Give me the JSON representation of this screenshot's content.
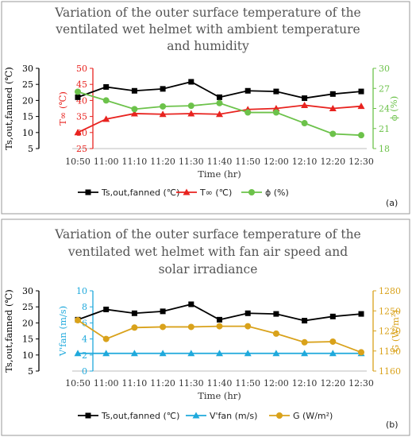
{
  "chart_data": [
    {
      "type": "line",
      "panel_label": "(a)",
      "title_lines": [
        "Variation of the outer surface temperature of the",
        "ventilated wet helmet with ambient temperature",
        "and humidity"
      ],
      "xlabel": "Time (hr)",
      "categories": [
        "10:50",
        "11:00",
        "11:10",
        "11:20",
        "11:30",
        "11:40",
        "11:50",
        "12:00",
        "12:10",
        "12:20",
        "12:30"
      ],
      "axes": [
        {
          "id": "a1",
          "label": "Ts,out,fanned (℃)",
          "color": "#000000",
          "min": 5,
          "max": 30,
          "step": 5
        },
        {
          "id": "a2",
          "label": "T∞ (℃)",
          "color": "#e8231f",
          "min": 25,
          "max": 50,
          "step": 5
        },
        {
          "id": "a3",
          "label": "ϕ (%)",
          "color": "#6cc24a",
          "min": 18,
          "max": 30,
          "step": 3
        }
      ],
      "series": [
        {
          "name": "Ts,out,fanned (℃)",
          "axis": "a1",
          "color": "#000000",
          "marker": "square",
          "values": [
            21.0,
            24.2,
            23.0,
            23.6,
            25.8,
            21.0,
            23.0,
            22.8,
            20.7,
            22.0,
            22.8
          ]
        },
        {
          "name": "T∞ (℃)",
          "axis": "a2",
          "color": "#e8231f",
          "marker": "triangle",
          "values": [
            30.0,
            34.2,
            35.9,
            35.7,
            35.9,
            35.7,
            37.2,
            37.5,
            38.5,
            37.5,
            38.2
          ]
        },
        {
          "name": "ϕ (%)",
          "axis": "a3",
          "color": "#6cc24a",
          "marker": "circle",
          "values": [
            26.5,
            25.2,
            23.9,
            24.3,
            24.4,
            24.8,
            23.4,
            23.4,
            21.8,
            20.2,
            20.0
          ]
        }
      ]
    },
    {
      "type": "line",
      "panel_label": "(b)",
      "title_lines": [
        "Variation of the outer surface temperature of the",
        "ventilated wet helmet with fan air speed and",
        "solar irradiance"
      ],
      "xlabel": "Time (hr)",
      "categories": [
        "10:50",
        "11:00",
        "11:10",
        "11:20",
        "11:30",
        "11:40",
        "11:50",
        "12:00",
        "12:10",
        "12:20",
        "12:30"
      ],
      "axes": [
        {
          "id": "b1",
          "label": "Ts,out,fanned (℃)",
          "color": "#000000",
          "min": 5,
          "max": 30,
          "step": 5
        },
        {
          "id": "b2",
          "label": "V'fan (m/s)",
          "color": "#1fa9dc",
          "min": 0,
          "max": 10,
          "step": 2
        },
        {
          "id": "b3",
          "label": "G (W/m²)",
          "color": "#d9a21b",
          "min": 1160,
          "max": 1280,
          "step": 30
        }
      ],
      "series": [
        {
          "name": "Ts,out,fanned (℃)",
          "axis": "b1",
          "color": "#000000",
          "marker": "square",
          "values": [
            21.0,
            24.2,
            23.0,
            23.6,
            25.8,
            21.0,
            23.0,
            22.8,
            20.7,
            22.0,
            22.8
          ]
        },
        {
          "name": "V'fan (m/s)",
          "axis": "b2",
          "color": "#1fa9dc",
          "marker": "triangle",
          "values": [
            2.2,
            2.2,
            2.2,
            2.2,
            2.2,
            2.2,
            2.2,
            2.2,
            2.2,
            2.2,
            2.2
          ]
        },
        {
          "name": "G (W/m²)",
          "axis": "b3",
          "color": "#d9a21b",
          "marker": "circle",
          "values": [
            1236,
            1208,
            1225,
            1226,
            1226,
            1227,
            1227,
            1216,
            1203,
            1204,
            1188
          ]
        }
      ]
    }
  ]
}
